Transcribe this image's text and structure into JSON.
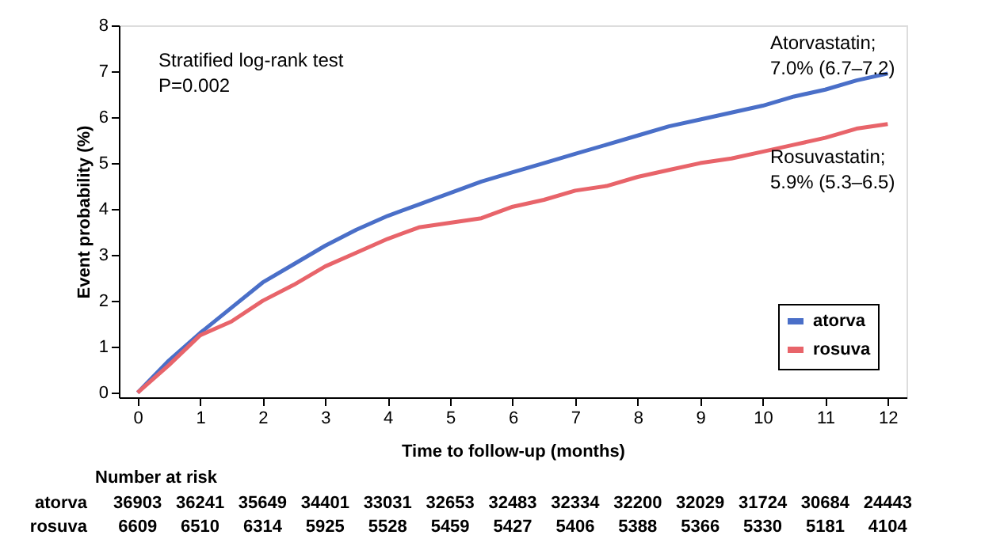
{
  "chart_data": {
    "type": "line",
    "xlabel": "Time to follow-up (months)",
    "ylabel": "Event probability (%)",
    "x": [
      0,
      0.5,
      1,
      1.5,
      2,
      2.5,
      3,
      3.5,
      4,
      4.5,
      5,
      5.5,
      6,
      6.5,
      7,
      7.5,
      8,
      8.5,
      9,
      9.5,
      10,
      10.5,
      11,
      11.5,
      12
    ],
    "series": [
      {
        "name": "atorva",
        "color": "#4a6fc8",
        "values": [
          0,
          0.7,
          1.3,
          1.85,
          2.4,
          2.8,
          3.2,
          3.55,
          3.85,
          4.1,
          4.35,
          4.6,
          4.8,
          5.0,
          5.2,
          5.4,
          5.6,
          5.8,
          5.95,
          6.1,
          6.25,
          6.45,
          6.6,
          6.8,
          6.95
        ]
      },
      {
        "name": "rosuva",
        "color": "#e8646a",
        "values": [
          0,
          0.6,
          1.25,
          1.55,
          2.0,
          2.35,
          2.75,
          3.05,
          3.35,
          3.6,
          3.7,
          3.8,
          4.05,
          4.2,
          4.4,
          4.5,
          4.7,
          4.85,
          5.0,
          5.1,
          5.25,
          5.4,
          5.55,
          5.75,
          5.85
        ]
      }
    ],
    "xlim": [
      -0.3,
      12.3
    ],
    "xticks": [
      0,
      1,
      2,
      3,
      4,
      5,
      6,
      7,
      8,
      9,
      10,
      11,
      12
    ],
    "ylim": [
      -0.1,
      8
    ],
    "yticks": [
      0,
      1,
      2,
      3,
      4,
      5,
      6,
      7,
      8
    ],
    "grid": false,
    "legend": "bottom right",
    "marker": "none",
    "line_style": "solid",
    "annotations": [
      "Stratified log-rank test",
      "P=0.002",
      "Atorvastatin;\n7.0% (6.7–7.2)",
      "Rosuvastatin;\n5.9% (5.3–6.5)",
      "Number at risk",
      "atorva",
      "36903",
      "36241",
      "35649",
      "34401",
      "33031",
      "32653",
      "32483",
      "32334",
      "32200",
      "32029",
      "31724",
      "30684",
      "24443",
      "rosuva",
      "6609",
      "6510",
      "6314",
      "5925",
      "5528",
      "5459",
      "5427",
      "5406",
      "5388",
      "5366",
      "5330",
      "5181",
      "4104"
    ]
  }
}
